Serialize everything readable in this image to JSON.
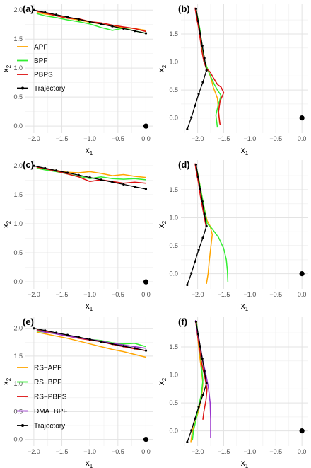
{
  "chart_data": [
    {
      "type": "line",
      "panel_label": "(a)",
      "xlabel": "x",
      "xlabel_sub": "1",
      "ylabel": "x",
      "ylabel_sub": "2",
      "xlim": [
        -2.15,
        0.12
      ],
      "ylim": [
        -0.12,
        2.1
      ],
      "xticks": [
        -2.0,
        -1.5,
        -1.0,
        -0.5,
        0.0
      ],
      "xticklabels": [
        "−2.0",
        "−1.5",
        "−1.0",
        "−0.5",
        "0.0"
      ],
      "yticks": [
        0.0,
        0.5,
        1.0,
        1.5,
        2.0
      ],
      "yticklabels": [
        "0.0",
        "0.5",
        "1.0",
        "1.5",
        "2.0"
      ],
      "grid": true,
      "target_point": [
        0.0,
        0.0
      ],
      "legend": {
        "entries": [
          "APF",
          "BPF",
          "PBPS",
          "Trajectory"
        ]
      },
      "series": [
        {
          "name": "APF",
          "color": "#ffa500",
          "x": [
            -1.95,
            -1.8,
            -1.6,
            -1.4,
            -1.2,
            -1.0,
            -0.8,
            -0.6,
            -0.4,
            -0.2,
            0.0
          ],
          "y": [
            1.96,
            1.93,
            1.91,
            1.86,
            1.83,
            1.79,
            1.76,
            1.72,
            1.7,
            1.68,
            1.65
          ]
        },
        {
          "name": "BPF",
          "color": "#33ee33",
          "x": [
            -1.95,
            -1.8,
            -1.6,
            -1.4,
            -1.2,
            -1.0,
            -0.8,
            -0.6,
            -0.4,
            -0.2,
            0.0
          ],
          "y": [
            1.94,
            1.9,
            1.87,
            1.83,
            1.8,
            1.76,
            1.7,
            1.65,
            1.69,
            1.64,
            1.6
          ]
        },
        {
          "name": "PBPS",
          "color": "#dd1111",
          "x": [
            -1.95,
            -1.8,
            -1.6,
            -1.4,
            -1.2,
            -1.0,
            -0.8,
            -0.6,
            -0.4,
            -0.2,
            0.0
          ],
          "y": [
            1.98,
            1.95,
            1.9,
            1.86,
            1.85,
            1.8,
            1.78,
            1.74,
            1.71,
            1.68,
            1.63
          ]
        },
        {
          "name": "Trajectory",
          "color": "#000000",
          "markers": true,
          "x": [
            -2.0,
            -1.8,
            -1.6,
            -1.4,
            -1.2,
            -1.0,
            -0.8,
            -0.6,
            -0.4,
            -0.2,
            0.0
          ],
          "y": [
            2.0,
            1.96,
            1.92,
            1.88,
            1.84,
            1.8,
            1.76,
            1.72,
            1.68,
            1.64,
            1.6
          ]
        }
      ]
    },
    {
      "type": "line",
      "panel_label": "(b)",
      "xlabel": "x",
      "xlabel_sub": "1",
      "ylabel": "x",
      "ylabel_sub": "2",
      "xlim": [
        -2.32,
        0.12
      ],
      "ylim": [
        -0.27,
        2.03
      ],
      "xticks": [
        -2.0,
        -1.5,
        -1.0,
        -0.5,
        0.0
      ],
      "xticklabels": [
        "−2.0",
        "−1.5",
        "−1.0",
        "−0.5",
        "0.0"
      ],
      "yticks": [
        0.0,
        0.5,
        1.0,
        1.5
      ],
      "yticklabels": [
        "0.0",
        "0.5",
        "1.0",
        "1.5"
      ],
      "grid": true,
      "target_point": [
        0.0,
        0.0
      ],
      "series": [
        {
          "name": "APF",
          "color": "#ffa500",
          "x": [
            -2.03,
            -2.0,
            -1.97,
            -1.94,
            -1.9,
            -1.86,
            -1.82,
            -1.8,
            -1.78,
            -1.74,
            -1.7,
            -1.66,
            -1.62,
            -1.6,
            -1.58
          ],
          "y": [
            1.95,
            1.8,
            1.6,
            1.4,
            1.2,
            1.0,
            0.9,
            0.85,
            0.8,
            0.7,
            0.55,
            0.45,
            0.35,
            0.15,
            -0.1
          ]
        },
        {
          "name": "BPF",
          "color": "#33ee33",
          "x": [
            -2.03,
            -2.0,
            -1.96,
            -1.93,
            -1.9,
            -1.86,
            -1.8,
            -1.74,
            -1.68,
            -1.62,
            -1.55,
            -1.6,
            -1.65,
            -1.62
          ],
          "y": [
            1.93,
            1.8,
            1.6,
            1.4,
            1.2,
            1.0,
            0.85,
            0.72,
            0.6,
            0.5,
            0.4,
            0.25,
            0.05,
            -0.17
          ]
        },
        {
          "name": "PBPS",
          "color": "#dd1111",
          "x": [
            -2.05,
            -2.02,
            -1.98,
            -1.95,
            -1.92,
            -1.88,
            -1.83,
            -1.76,
            -1.7,
            -1.62,
            -1.55,
            -1.5,
            -1.57,
            -1.6,
            -1.57
          ],
          "y": [
            1.97,
            1.8,
            1.6,
            1.4,
            1.2,
            1.0,
            0.88,
            0.82,
            0.72,
            0.6,
            0.55,
            0.45,
            0.3,
            0.1,
            -0.12
          ]
        },
        {
          "name": "Trajectory",
          "color": "#000000",
          "markers": true,
          "x": [
            -2.03,
            -1.99,
            -1.95,
            -1.91,
            -1.87,
            -1.83,
            -1.9,
            -1.98,
            -2.05,
            -2.12,
            -2.2
          ],
          "y": [
            1.95,
            1.73,
            1.51,
            1.29,
            1.07,
            0.85,
            0.64,
            0.43,
            0.22,
            0.01,
            -0.2
          ]
        }
      ]
    },
    {
      "type": "line",
      "panel_label": "(c)",
      "xlabel": "x",
      "xlabel_sub": "1",
      "ylabel": "x",
      "ylabel_sub": "2",
      "xlim": [
        -2.15,
        0.12
      ],
      "ylim": [
        -0.12,
        2.1
      ],
      "xticks": [
        -2.0,
        -1.5,
        -1.0,
        -0.5,
        0.0
      ],
      "xticklabels": [
        "−2.0",
        "−1.5",
        "−1.0",
        "−0.5",
        "0.0"
      ],
      "yticks": [
        0.0,
        0.5,
        1.0,
        1.5,
        2.0
      ],
      "yticklabels": [
        "0.0",
        "0.5",
        "1.0",
        "1.5",
        "2.0"
      ],
      "grid": true,
      "target_point": [
        0.0,
        0.0
      ],
      "series": [
        {
          "name": "APF",
          "color": "#ffa500",
          "x": [
            -1.95,
            -1.8,
            -1.6,
            -1.4,
            -1.2,
            -1.0,
            -0.8,
            -0.6,
            -0.4,
            -0.2,
            0.0
          ],
          "y": [
            1.97,
            1.95,
            1.92,
            1.89,
            1.88,
            1.9,
            1.87,
            1.83,
            1.85,
            1.82,
            1.8
          ]
        },
        {
          "name": "BPF",
          "color": "#33ee33",
          "x": [
            -1.95,
            -1.8,
            -1.6,
            -1.4,
            -1.2,
            -1.0,
            -0.8,
            -0.6,
            -0.4,
            -0.2,
            0.0
          ],
          "y": [
            1.96,
            1.93,
            1.9,
            1.86,
            1.82,
            1.78,
            1.81,
            1.78,
            1.77,
            1.78,
            1.76
          ]
        },
        {
          "name": "PBPS",
          "color": "#dd1111",
          "x": [
            -1.95,
            -1.8,
            -1.6,
            -1.4,
            -1.2,
            -1.0,
            -0.8,
            -0.6,
            -0.4,
            -0.2,
            0.0
          ],
          "y": [
            1.98,
            1.95,
            1.91,
            1.86,
            1.81,
            1.73,
            1.76,
            1.73,
            1.7,
            1.72,
            1.7
          ]
        },
        {
          "name": "Trajectory",
          "color": "#000000",
          "markers": true,
          "x": [
            -2.0,
            -1.8,
            -1.6,
            -1.4,
            -1.2,
            -1.0,
            -0.8,
            -0.6,
            -0.4,
            -0.2,
            0.0
          ],
          "y": [
            2.0,
            1.96,
            1.92,
            1.88,
            1.84,
            1.8,
            1.76,
            1.72,
            1.68,
            1.64,
            1.6
          ]
        }
      ]
    },
    {
      "type": "line",
      "panel_label": "(d)",
      "xlabel": "x",
      "xlabel_sub": "1",
      "ylabel": "x",
      "ylabel_sub": "2",
      "xlim": [
        -2.32,
        0.12
      ],
      "ylim": [
        -0.27,
        2.03
      ],
      "xticks": [
        -2.0,
        -1.5,
        -1.0,
        -0.5,
        0.0
      ],
      "xticklabels": [
        "−2.0",
        "−1.5",
        "−1.0",
        "−0.5",
        "0.0"
      ],
      "yticks": [
        0.0,
        0.5,
        1.0,
        1.5
      ],
      "yticklabels": [
        "0.0",
        "0.5",
        "1.0",
        "1.5"
      ],
      "grid": true,
      "target_point": [
        0.0,
        0.0
      ],
      "series": [
        {
          "name": "APF",
          "color": "#ffa500",
          "x": [
            -2.04,
            -2.0,
            -1.96,
            -1.92,
            -1.88,
            -1.82,
            -1.76,
            -1.72,
            -1.75,
            -1.78,
            -1.8,
            -1.83
          ],
          "y": [
            1.95,
            1.8,
            1.6,
            1.4,
            1.2,
            0.95,
            0.85,
            0.7,
            0.45,
            0.2,
            0.0,
            -0.18
          ]
        },
        {
          "name": "BPF",
          "color": "#33ee33",
          "x": [
            -2.03,
            -1.99,
            -1.95,
            -1.91,
            -1.87,
            -1.82,
            -1.72,
            -1.6,
            -1.5,
            -1.45,
            -1.43,
            -1.42
          ],
          "y": [
            1.93,
            1.75,
            1.55,
            1.35,
            1.15,
            0.9,
            0.8,
            0.65,
            0.45,
            0.25,
            0.05,
            -0.15
          ]
        },
        {
          "name": "PBPS",
          "color": "#dd1111",
          "x": [
            -2.05,
            -2.02,
            -1.98,
            -1.95,
            -1.91,
            -1.87,
            -1.84
          ],
          "y": [
            1.97,
            1.8,
            1.6,
            1.4,
            1.2,
            1.0,
            0.85
          ]
        },
        {
          "name": "Trajectory",
          "color": "#000000",
          "markers": true,
          "x": [
            -2.03,
            -1.99,
            -1.95,
            -1.91,
            -1.87,
            -1.83,
            -1.9,
            -1.98,
            -2.05,
            -2.12,
            -2.2
          ],
          "y": [
            1.95,
            1.73,
            1.51,
            1.29,
            1.07,
            0.85,
            0.64,
            0.43,
            0.22,
            0.01,
            -0.2
          ]
        }
      ]
    },
    {
      "type": "line",
      "panel_label": "(e)",
      "xlabel": "x",
      "xlabel_sub": "1",
      "ylabel": "x",
      "ylabel_sub": "2",
      "xlim": [
        -2.15,
        0.12
      ],
      "ylim": [
        -0.12,
        2.2
      ],
      "xticks": [
        -2.0,
        -1.5,
        -1.0,
        -0.5,
        0.0
      ],
      "xticklabels": [
        "−2.0",
        "−1.5",
        "−1.0",
        "−0.5",
        "0.0"
      ],
      "yticks": [
        0.0,
        0.5,
        1.0,
        1.5,
        2.0
      ],
      "yticklabels": [
        "0.0",
        "0.5",
        "1.0",
        "1.5",
        "2.0"
      ],
      "grid": true,
      "target_point": [
        0.0,
        0.0
      ],
      "legend": {
        "entries": [
          "RS−APF",
          "RS−BPF",
          "RS−PBPS",
          "DMA−BPF",
          "Trajectory"
        ]
      },
      "series": [
        {
          "name": "RS−APF",
          "color": "#ffa500",
          "x": [
            -1.95,
            -1.8,
            -1.6,
            -1.4,
            -1.2,
            -1.0,
            -0.8,
            -0.6,
            -0.4,
            -0.2,
            0.0
          ],
          "y": [
            1.93,
            1.9,
            1.86,
            1.82,
            1.77,
            1.72,
            1.67,
            1.62,
            1.58,
            1.53,
            1.48
          ]
        },
        {
          "name": "RS−BPF",
          "color": "#33ee33",
          "x": [
            -1.95,
            -1.8,
            -1.6,
            -1.4,
            -1.2,
            -1.0,
            -0.8,
            -0.6,
            -0.4,
            -0.2,
            0.0
          ],
          "y": [
            1.95,
            1.93,
            1.9,
            1.87,
            1.84,
            1.8,
            1.78,
            1.74,
            1.72,
            1.73,
            1.67
          ]
        },
        {
          "name": "RS−PBPS",
          "color": "#dd1111",
          "x": [
            -1.95,
            -1.8,
            -1.6,
            -1.4,
            -1.2,
            -1.0,
            -0.8,
            -0.6,
            -0.4,
            -0.2,
            0.0
          ],
          "y": [
            1.97,
            1.94,
            1.9,
            1.86,
            1.82,
            1.79,
            1.76,
            1.71,
            1.67,
            1.63,
            1.6
          ]
        },
        {
          "name": "DMA−BPF",
          "color": "#9933cc",
          "x": [
            -1.95,
            -1.8,
            -1.6,
            -1.4,
            -1.2,
            -1.0,
            -0.8,
            -0.6,
            -0.4,
            -0.2,
            0.0
          ],
          "y": [
            1.96,
            1.93,
            1.9,
            1.86,
            1.83,
            1.8,
            1.77,
            1.73,
            1.7,
            1.67,
            1.64
          ]
        },
        {
          "name": "Trajectory",
          "color": "#000000",
          "markers": true,
          "x": [
            -2.0,
            -1.8,
            -1.6,
            -1.4,
            -1.2,
            -1.0,
            -0.8,
            -0.6,
            -0.4,
            -0.2,
            0.0
          ],
          "y": [
            2.0,
            1.96,
            1.92,
            1.88,
            1.84,
            1.8,
            1.76,
            1.72,
            1.68,
            1.64,
            1.6
          ]
        }
      ]
    },
    {
      "type": "line",
      "panel_label": "(f)",
      "xlabel": "x",
      "xlabel_sub": "1",
      "ylabel": "x",
      "ylabel_sub": "2",
      "xlim": [
        -2.32,
        0.12
      ],
      "ylim": [
        -0.27,
        2.03
      ],
      "xticks": [
        -2.0,
        -1.5,
        -1.0,
        -0.5,
        0.0
      ],
      "xticklabels": [
        "−2.0",
        "−1.5",
        "−1.0",
        "−0.5",
        "0.0"
      ],
      "yticks": [
        0.0,
        0.5,
        1.0,
        1.5
      ],
      "yticklabels": [
        "0.0",
        "0.5",
        "1.0",
        "1.5"
      ],
      "grid": true,
      "target_point": [
        0.0,
        0.0
      ],
      "series": [
        {
          "name": "RS−APF",
          "color": "#ffa500",
          "x": [
            -2.02,
            -2.0,
            -1.97,
            -1.93,
            -1.9,
            -1.92,
            -1.96,
            -2.0,
            -2.05,
            -2.1,
            -2.13
          ],
          "y": [
            1.95,
            1.7,
            1.4,
            1.1,
            0.85,
            0.65,
            0.45,
            0.3,
            0.15,
            0.0,
            -0.2
          ]
        },
        {
          "name": "RS−BPF",
          "color": "#33ee33",
          "x": [
            -2.02,
            -1.99,
            -1.96,
            -1.93,
            -1.9,
            -1.93,
            -1.98,
            -2.03,
            -2.08,
            -2.1
          ],
          "y": [
            1.93,
            1.7,
            1.45,
            1.2,
            0.9,
            0.65,
            0.45,
            0.2,
            0.0,
            -0.17
          ]
        },
        {
          "name": "RS−PBPS",
          "color": "#dd1111",
          "x": [
            -2.04,
            -2.0,
            -1.96,
            -1.92,
            -1.86,
            -1.82,
            -1.84,
            -1.88,
            -1.9
          ],
          "y": [
            1.96,
            1.7,
            1.45,
            1.2,
            0.95,
            0.75,
            0.55,
            0.35,
            0.2
          ]
        },
        {
          "name": "DMA−BPF",
          "color": "#9933cc",
          "x": [
            -2.04,
            -2.0,
            -1.95,
            -1.9,
            -1.84,
            -1.79,
            -1.76,
            -1.75,
            -1.75
          ],
          "y": [
            1.98,
            1.75,
            1.5,
            1.25,
            1.0,
            0.75,
            0.5,
            0.2,
            -0.12
          ]
        },
        {
          "name": "Trajectory",
          "color": "#000000",
          "markers": true,
          "x": [
            -2.03,
            -1.99,
            -1.95,
            -1.91,
            -1.87,
            -1.83,
            -1.9,
            -1.98,
            -2.05,
            -2.12,
            -2.2
          ],
          "y": [
            1.95,
            1.73,
            1.51,
            1.29,
            1.07,
            0.85,
            0.64,
            0.43,
            0.22,
            0.01,
            -0.2
          ]
        }
      ]
    }
  ]
}
